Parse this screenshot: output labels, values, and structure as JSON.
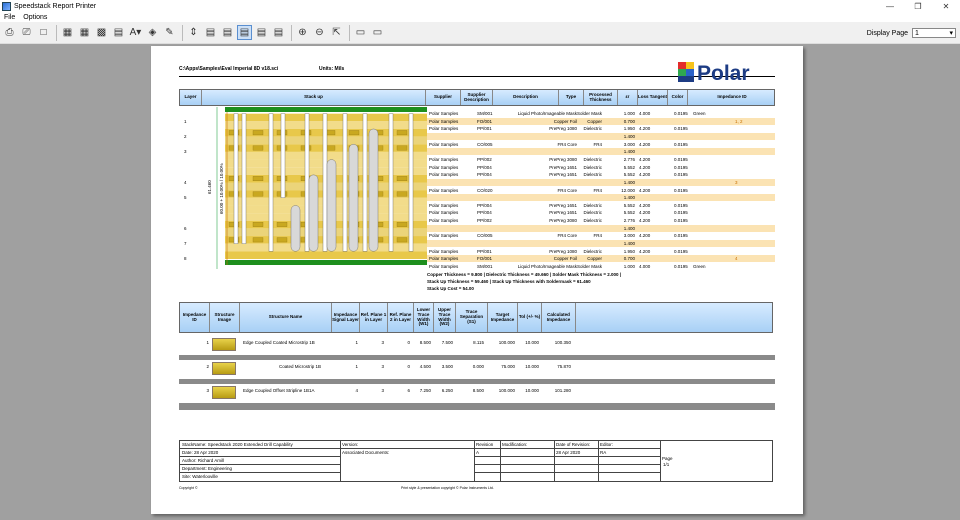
{
  "window": {
    "title": "Speedstack Report Printer"
  },
  "menu": [
    "File",
    "Options"
  ],
  "toolbar": {
    "display_page_label": "Display Page",
    "display_page_value": "1"
  },
  "report": {
    "path": "C:\\Apps\\Samples\\Eval Imperial 8D v18.sci",
    "units": "Units: Mils",
    "logo_text": "Polar",
    "stack_headers": [
      "Layer",
      "Stack up",
      "Supplier",
      "Supplier Description",
      "Description",
      "Type",
      "Processed Thickness",
      "εr",
      "Loss Tangent",
      "Color",
      "Impedance ID"
    ],
    "dims": {
      "total": "61.460",
      "dim_inner": "60.00 + 10.00% / 10.00%"
    },
    "layers": [
      {
        "num": "",
        "supplier": "Polar Samples",
        "sdesc": "SM/001",
        "desc": "Liquid Photo/Imageable Mask",
        "type": "Solder Mask",
        "thk": "1.000",
        "er": "4.000",
        "lt": "0.0195",
        "color": "Green",
        "imp": "",
        "hl": false
      },
      {
        "num": "1",
        "supplier": "Polar Samples",
        "sdesc": "FO/001",
        "desc": "Copper Foil",
        "type": "Copper",
        "thk": "0.700",
        "er": "",
        "lt": "",
        "color": "",
        "imp": "1, 2",
        "hl": true
      },
      {
        "num": "",
        "supplier": "Polar Samples",
        "sdesc": "PP/001",
        "desc": "PrePreg 1080",
        "type": "Dielectric",
        "thk": "1.950",
        "er": "4.200",
        "lt": "0.0195",
        "color": "",
        "imp": "",
        "hl": false
      },
      {
        "num": "2",
        "supplier": "",
        "sdesc": "",
        "desc": "",
        "type": "",
        "thk": "1.400",
        "er": "",
        "lt": "",
        "color": "",
        "imp": "",
        "hl": true
      },
      {
        "num": "",
        "supplier": "Polar Samples",
        "sdesc": "CO/005",
        "desc": "FR4 Core",
        "type": "FR4",
        "thk": "3.000",
        "er": "4.200",
        "lt": "0.0195",
        "color": "",
        "imp": "",
        "hl": false
      },
      {
        "num": "3",
        "supplier": "",
        "sdesc": "",
        "desc": "",
        "type": "",
        "thk": "1.400",
        "er": "",
        "lt": "",
        "color": "",
        "imp": "",
        "hl": true
      },
      {
        "num": "",
        "supplier": "Polar Samples",
        "sdesc": "PP/002",
        "desc": "PrePreg 3080",
        "type": "Dielectric",
        "thk": "2.776",
        "er": "4.200",
        "lt": "0.0195",
        "color": "",
        "imp": "",
        "hl": false
      },
      {
        "num": "",
        "supplier": "Polar Samples",
        "sdesc": "PP/004",
        "desc": "PrePreg 1651",
        "type": "Dielectric",
        "thk": "5.552",
        "er": "4.200",
        "lt": "0.0195",
        "color": "",
        "imp": "",
        "hl": false
      },
      {
        "num": "",
        "supplier": "Polar Samples",
        "sdesc": "PP/004",
        "desc": "PrePreg 1651",
        "type": "Dielectric",
        "thk": "5.552",
        "er": "4.200",
        "lt": "0.0195",
        "color": "",
        "imp": "",
        "hl": false
      },
      {
        "num": "4",
        "supplier": "",
        "sdesc": "",
        "desc": "",
        "type": "",
        "thk": "1.400",
        "er": "",
        "lt": "",
        "color": "",
        "imp": "3",
        "hl": true
      },
      {
        "num": "",
        "supplier": "Polar Samples",
        "sdesc": "CO/020",
        "desc": "FR4 Core",
        "type": "FR4",
        "thk": "12.000",
        "er": "4.200",
        "lt": "0.0195",
        "color": "",
        "imp": "",
        "hl": false
      },
      {
        "num": "5",
        "supplier": "",
        "sdesc": "",
        "desc": "",
        "type": "",
        "thk": "1.400",
        "er": "",
        "lt": "",
        "color": "",
        "imp": "",
        "hl": true
      },
      {
        "num": "",
        "supplier": "Polar Samples",
        "sdesc": "PP/004",
        "desc": "PrePreg 1651",
        "type": "Dielectric",
        "thk": "5.552",
        "er": "4.200",
        "lt": "0.0195",
        "color": "",
        "imp": "",
        "hl": false
      },
      {
        "num": "",
        "supplier": "Polar Samples",
        "sdesc": "PP/004",
        "desc": "PrePreg 1651",
        "type": "Dielectric",
        "thk": "5.552",
        "er": "4.200",
        "lt": "0.0195",
        "color": "",
        "imp": "",
        "hl": false
      },
      {
        "num": "",
        "supplier": "Polar Samples",
        "sdesc": "PP/002",
        "desc": "PrePreg 3080",
        "type": "Dielectric",
        "thk": "2.776",
        "er": "4.200",
        "lt": "0.0195",
        "color": "",
        "imp": "",
        "hl": false
      },
      {
        "num": "6",
        "supplier": "",
        "sdesc": "",
        "desc": "",
        "type": "",
        "thk": "1.400",
        "er": "",
        "lt": "",
        "color": "",
        "imp": "",
        "hl": true
      },
      {
        "num": "",
        "supplier": "Polar Samples",
        "sdesc": "CO/005",
        "desc": "FR4 Core",
        "type": "FR4",
        "thk": "3.000",
        "er": "4.200",
        "lt": "0.0195",
        "color": "",
        "imp": "",
        "hl": false
      },
      {
        "num": "7",
        "supplier": "",
        "sdesc": "",
        "desc": "",
        "type": "",
        "thk": "1.400",
        "er": "",
        "lt": "",
        "color": "",
        "imp": "",
        "hl": true
      },
      {
        "num": "",
        "supplier": "Polar Samples",
        "sdesc": "PP/001",
        "desc": "PrePreg 1080",
        "type": "Dielectric",
        "thk": "1.950",
        "er": "4.200",
        "lt": "0.0195",
        "color": "",
        "imp": "",
        "hl": false
      },
      {
        "num": "8",
        "supplier": "Polar Samples",
        "sdesc": "FO/001",
        "desc": "Copper Foil",
        "type": "Copper",
        "thk": "0.700",
        "er": "",
        "lt": "",
        "color": "",
        "imp": "4",
        "hl": true
      },
      {
        "num": "",
        "supplier": "Polar Samples",
        "sdesc": "SM/001",
        "desc": "Liquid Photo/Imageable Mask",
        "type": "Solder Mask",
        "thk": "1.000",
        "er": "4.000",
        "lt": "0.0195",
        "color": "Green",
        "imp": "",
        "hl": false
      }
    ],
    "summary": [
      "Copper Thickness = 9.800  | Dielectric Thickness = 49.660  | Solder Mask Thickness = 2.000  |",
      "Stack Up Thickness = 59.460  | Stack Up Thickness with Soldermask = 61.460",
      "Stack Up Cost = 54.00"
    ],
    "imp_headers": [
      "Impedance ID",
      "Structure Image",
      "Structure Name",
      "Impedance Signal Layer",
      "Ref. Plane 1 in Layer",
      "Ref. Plane 2 in Layer",
      "Lower Trace Width (W1)",
      "Upper Trace Width (W2)",
      "Trace Separation (S1)",
      "Target Impedance",
      "Tol (+/- %)",
      "Calculated Impedance"
    ],
    "imp_rows": [
      {
        "id": "1",
        "name": "Edge Coupled Coated Microstrip 1B",
        "sig": "1",
        "rp1": "3",
        "rp2": "0",
        "w1": "8.500",
        "w2": "7.500",
        "s1": "8.115",
        "target": "100.000",
        "tol": "10.000",
        "calc": "100.350"
      },
      {
        "id": "2",
        "name": "Coated Microstrip 1B",
        "sig": "1",
        "rp1": "3",
        "rp2": "0",
        "w1": "4.500",
        "w2": "3.500",
        "s1": "0.000",
        "target": "75.000",
        "tol": "10.000",
        "calc": "75.870"
      },
      {
        "id": "3",
        "name": "Edge Coupled Offset Stripline 1B1A",
        "sig": "4",
        "rp1": "3",
        "rp2": "6",
        "w1": "7.250",
        "w2": "6.250",
        "s1": "8.500",
        "target": "100.000",
        "tol": "10.000",
        "calc": "101.280"
      }
    ],
    "footer": {
      "stackname": "StackName: Speedstack 2020 Extended Drill Capability",
      "date": "Date: 28 Apr 2020",
      "author": "Author: Richard Amill",
      "department": "Department: Engineering",
      "site": "Site: Waterlooville",
      "version": "Version:",
      "assoc": "Associated Documents:",
      "revision": "Revision",
      "revision_val": "A",
      "modification": "Modification:",
      "date_rev": "Date of Revision:",
      "date_rev_val": "28 Apr 2020",
      "editor": "Editor:",
      "editor_val": "RA",
      "page": "Page",
      "page_val": "1/1",
      "copyright_left": "Copyright ©",
      "copyright_center": "Print style & presentation copyright © Polar Instruments Ltd."
    }
  }
}
